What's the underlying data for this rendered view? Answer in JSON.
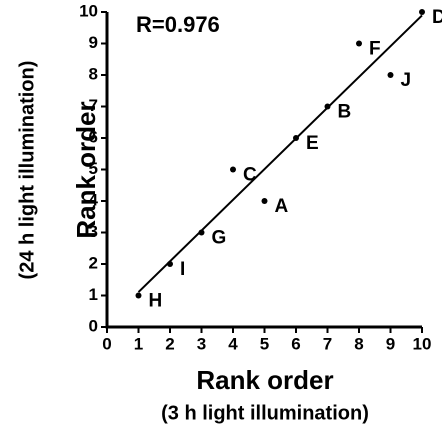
{
  "chart_data": {
    "type": "scatter",
    "annotation": "R=0.976",
    "x": [
      1,
      2,
      3,
      4,
      5,
      6,
      7,
      8,
      9,
      10
    ],
    "values": [
      1,
      2,
      3,
      5,
      4,
      6,
      7,
      9,
      8,
      10
    ],
    "point_labels": [
      "H",
      "I",
      "G",
      "C",
      "A",
      "E",
      "B",
      "F",
      "J",
      "D"
    ],
    "fit_line": {
      "x": [
        1,
        10
      ],
      "y": [
        1.11,
        9.89
      ]
    },
    "color": "#000000",
    "xlim": [
      0,
      10
    ],
    "ylim": [
      0,
      10
    ],
    "xticks": [
      0,
      1,
      2,
      3,
      4,
      5,
      6,
      7,
      8,
      9,
      10
    ],
    "yticks": [
      0,
      1,
      2,
      3,
      4,
      5,
      6,
      7,
      8,
      9,
      10
    ],
    "xlabel": "Rank order",
    "xlabel2": "(3 h light illumination)",
    "ylabel": "Rank order",
    "ylabel2": "(24 h light illumination)"
  }
}
